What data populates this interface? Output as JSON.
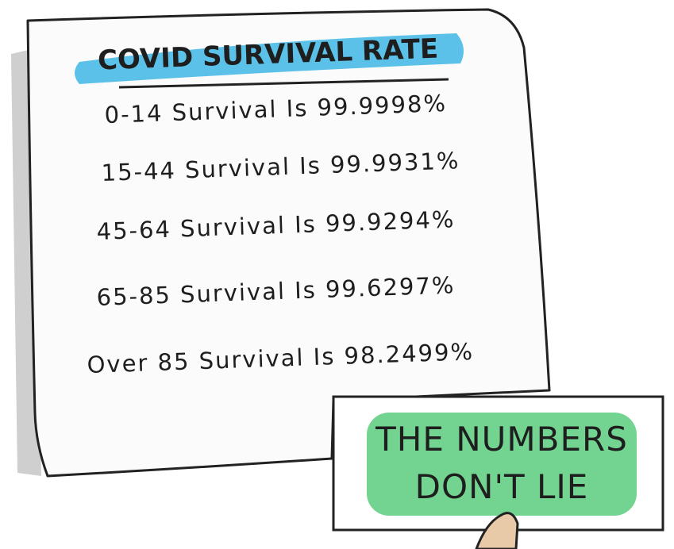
{
  "title": "COVID SURVIVAL RATE",
  "lines": [
    "0-14 Survival Is 99.9998%",
    "15-44 Survival Is 99.9931%",
    "45-64 Survival Is 99.9294%",
    "65-85 Survival Is 99.6297%",
    "Over 85 Survival Is 98.2499%"
  ],
  "sign": {
    "lines": [
      "THE NUMBERS",
      "DON'T LIE"
    ]
  }
}
